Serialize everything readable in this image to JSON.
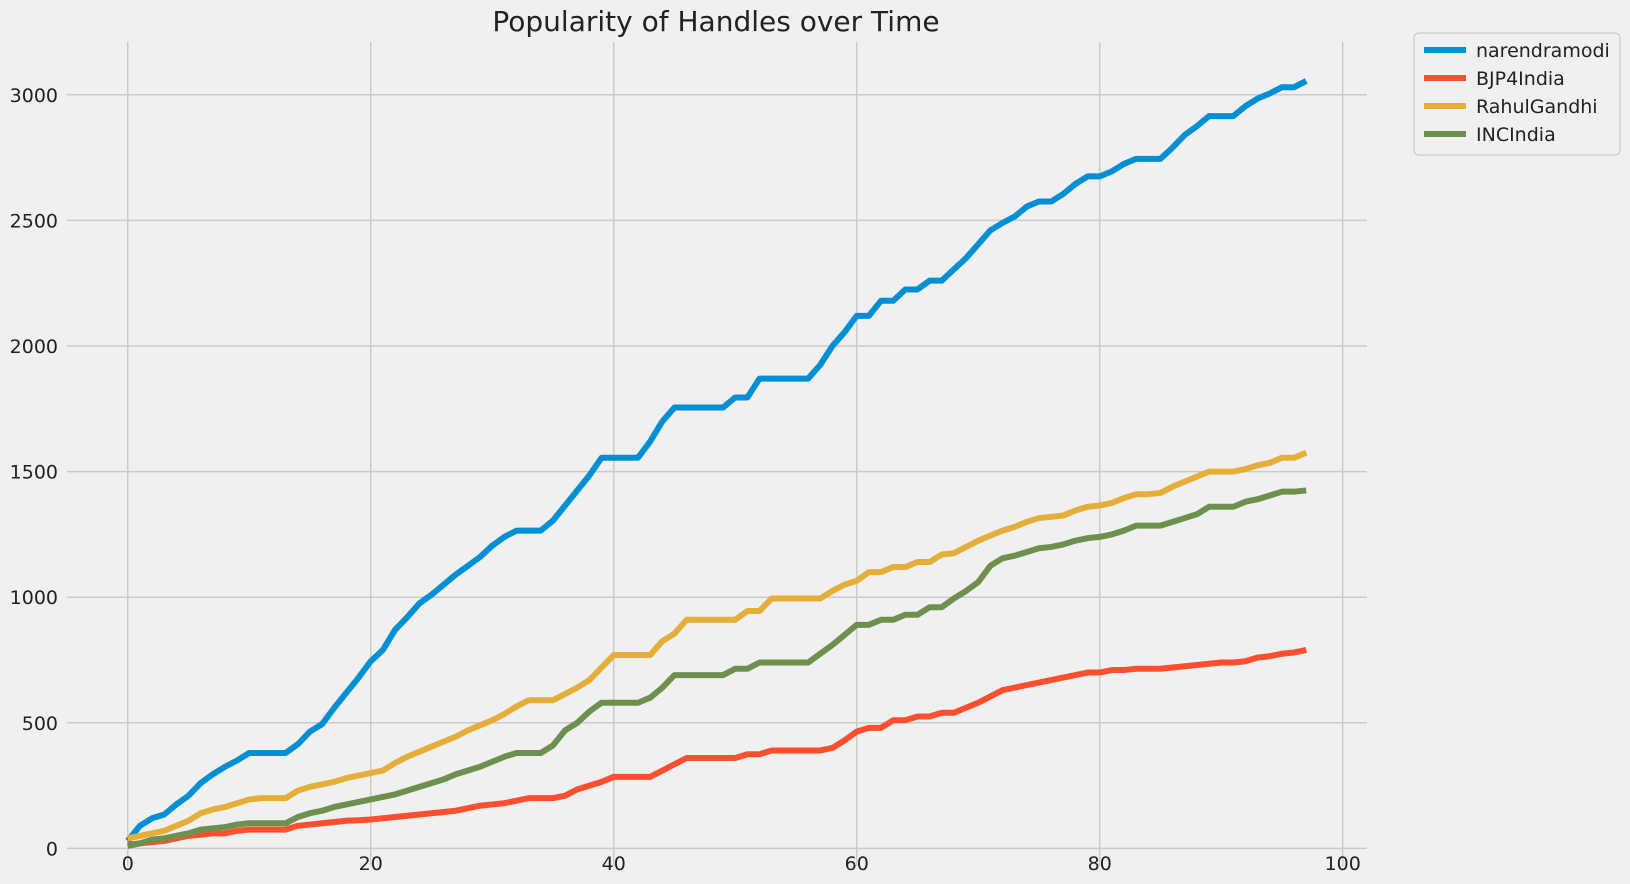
{
  "chart_data": {
    "type": "line",
    "title": "Popularity of Handles over Time",
    "xlabel": "",
    "ylabel": "",
    "xlim": [
      -5,
      102
    ],
    "ylim": [
      -70,
      3210
    ],
    "xticks": [
      0,
      20,
      40,
      60,
      80,
      100
    ],
    "yticks": [
      0,
      500,
      1000,
      1500,
      2000,
      2500,
      3000
    ],
    "grid": true,
    "legend_position": "outside-top-right",
    "x": [
      0,
      1,
      2,
      3,
      4,
      5,
      6,
      7,
      8,
      9,
      10,
      11,
      12,
      13,
      14,
      15,
      16,
      17,
      18,
      19,
      20,
      21,
      22,
      23,
      24,
      25,
      26,
      27,
      28,
      29,
      30,
      31,
      32,
      33,
      34,
      35,
      36,
      37,
      38,
      39,
      40,
      41,
      42,
      43,
      44,
      45,
      46,
      47,
      48,
      49,
      50,
      51,
      52,
      53,
      54,
      55,
      56,
      57,
      58,
      59,
      60,
      61,
      62,
      63,
      64,
      65,
      66,
      67,
      68,
      69,
      70,
      71,
      72,
      73,
      74,
      75,
      76,
      77,
      78,
      79,
      80,
      81,
      82,
      83,
      84,
      85,
      86,
      87,
      88,
      89,
      90,
      91,
      92,
      93,
      94,
      95,
      96,
      97
    ],
    "series": [
      {
        "name": "narendramodi",
        "color": "#008fd5",
        "values": [
          30,
          90,
          120,
          135,
          175,
          210,
          260,
          295,
          325,
          350,
          380,
          380,
          380,
          380,
          415,
          465,
          495,
          560,
          620,
          680,
          745,
          790,
          870,
          920,
          975,
          1010,
          1050,
          1090,
          1125,
          1160,
          1205,
          1240,
          1265,
          1265,
          1265,
          1305,
          1365,
          1425,
          1485,
          1555,
          1555,
          1555,
          1555,
          1620,
          1700,
          1755,
          1755,
          1755,
          1755,
          1755,
          1795,
          1795,
          1870,
          1870,
          1870,
          1870,
          1870,
          1925,
          2000,
          2055,
          2120,
          2120,
          2180,
          2180,
          2225,
          2225,
          2260,
          2260,
          2305,
          2350,
          2405,
          2460,
          2490,
          2515,
          2555,
          2575,
          2575,
          2605,
          2645,
          2675,
          2675,
          2695,
          2725,
          2745,
          2745,
          2745,
          2790,
          2840,
          2875,
          2915,
          2915,
          2915,
          2955,
          2985,
          3005,
          3030,
          3030,
          3055
        ]
      },
      {
        "name": "BJP4India",
        "color": "#fc4f30",
        "values": [
          15,
          20,
          25,
          30,
          40,
          50,
          55,
          60,
          60,
          70,
          75,
          75,
          75,
          75,
          90,
          95,
          100,
          105,
          110,
          112,
          115,
          120,
          125,
          130,
          135,
          140,
          145,
          150,
          160,
          170,
          175,
          180,
          190,
          200,
          200,
          200,
          210,
          235,
          250,
          265,
          285,
          285,
          285,
          285,
          310,
          335,
          360,
          360,
          360,
          360,
          360,
          375,
          375,
          390,
          390,
          390,
          390,
          390,
          400,
          430,
          465,
          480,
          480,
          510,
          510,
          525,
          525,
          540,
          540,
          560,
          580,
          605,
          630,
          640,
          650,
          660,
          670,
          680,
          690,
          700,
          700,
          710,
          710,
          715,
          715,
          715,
          720,
          725,
          730,
          735,
          740,
          740,
          745,
          760,
          765,
          775,
          780,
          790
        ]
      },
      {
        "name": "RahulGandhi",
        "color": "#e5ae38",
        "values": [
          40,
          50,
          60,
          70,
          90,
          110,
          140,
          155,
          165,
          180,
          195,
          200,
          200,
          200,
          230,
          245,
          255,
          265,
          280,
          290,
          300,
          310,
          340,
          365,
          385,
          405,
          425,
          445,
          470,
          490,
          510,
          535,
          565,
          590,
          590,
          590,
          615,
          640,
          670,
          720,
          770,
          770,
          770,
          770,
          825,
          855,
          910,
          910,
          910,
          910,
          910,
          945,
          945,
          995,
          995,
          995,
          995,
          995,
          1025,
          1050,
          1065,
          1100,
          1100,
          1120,
          1120,
          1140,
          1140,
          1170,
          1175,
          1200,
          1225,
          1245,
          1265,
          1280,
          1300,
          1315,
          1320,
          1325,
          1345,
          1360,
          1365,
          1375,
          1395,
          1410,
          1410,
          1415,
          1440,
          1460,
          1480,
          1500,
          1500,
          1500,
          1510,
          1525,
          1535,
          1555,
          1555,
          1575
        ]
      },
      {
        "name": "INCIndia",
        "color": "#6d904f",
        "values": [
          10,
          20,
          35,
          40,
          50,
          60,
          75,
          80,
          85,
          95,
          100,
          100,
          100,
          100,
          125,
          140,
          150,
          165,
          175,
          185,
          195,
          205,
          215,
          230,
          245,
          260,
          275,
          295,
          310,
          325,
          345,
          365,
          380,
          380,
          380,
          410,
          470,
          500,
          545,
          580,
          580,
          580,
          580,
          600,
          640,
          690,
          690,
          690,
          690,
          690,
          715,
          715,
          740,
          740,
          740,
          740,
          740,
          775,
          810,
          850,
          890,
          890,
          910,
          910,
          930,
          930,
          960,
          960,
          995,
          1025,
          1060,
          1125,
          1155,
          1165,
          1180,
          1195,
          1200,
          1210,
          1225,
          1235,
          1240,
          1250,
          1265,
          1285,
          1285,
          1285,
          1300,
          1315,
          1330,
          1360,
          1360,
          1360,
          1380,
          1390,
          1405,
          1420,
          1420,
          1425
        ]
      }
    ]
  }
}
